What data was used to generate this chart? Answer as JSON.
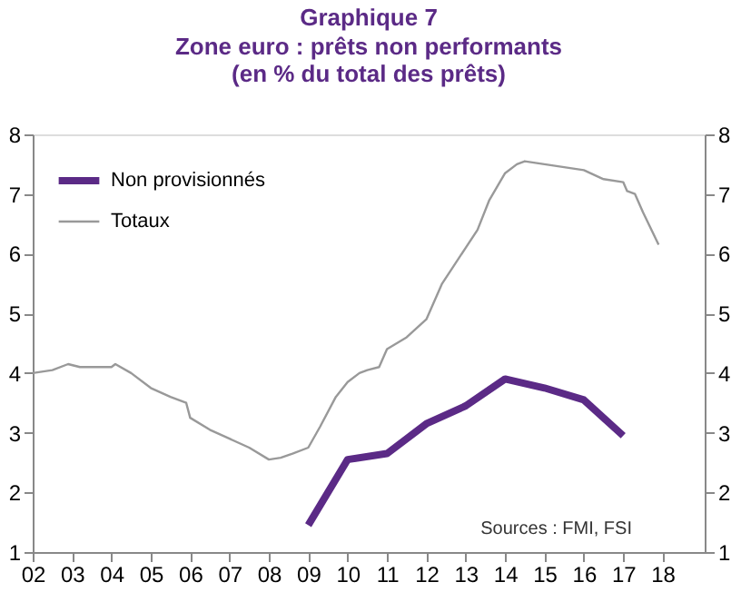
{
  "chart_data": {
    "type": "line",
    "title": "Graphique 7",
    "subtitle": [
      "Zone euro : prêts non performants",
      "(en % du total des prêts)"
    ],
    "series": [
      {
        "name": "Non provisionnés",
        "color": "#5b2a86",
        "x": [
          2009,
          2010,
          2011,
          2012,
          2013,
          2014,
          2015,
          2016,
          2017
        ],
        "values": [
          1.45,
          2.55,
          2.65,
          3.15,
          3.45,
          3.9,
          3.75,
          3.55,
          2.95
        ]
      },
      {
        "name": "Totaux",
        "color": "#999999",
        "x": [
          2002,
          2002.5,
          2002.9,
          2003.2,
          2004,
          2004.1,
          2004.5,
          2005,
          2005.5,
          2005.9,
          2006,
          2006.5,
          2007,
          2007.5,
          2008,
          2008.3,
          2008.6,
          2009,
          2009.3,
          2009.7,
          2010,
          2010.3,
          2010.5,
          2010.8,
          2011,
          2011.5,
          2012,
          2012.4,
          2013,
          2013.3,
          2013.6,
          2014,
          2014.3,
          2014.5,
          2015,
          2015.5,
          2016,
          2016.5,
          2017,
          2017.1,
          2017.3,
          2017.5,
          2017.9
        ],
        "values": [
          4.0,
          4.05,
          4.15,
          4.1,
          4.1,
          4.15,
          4.0,
          3.75,
          3.6,
          3.5,
          3.25,
          3.05,
          2.9,
          2.75,
          2.55,
          2.58,
          2.65,
          2.75,
          3.1,
          3.6,
          3.85,
          4.0,
          4.05,
          4.1,
          4.4,
          4.6,
          4.9,
          5.5,
          6.1,
          6.4,
          6.9,
          7.35,
          7.5,
          7.55,
          7.5,
          7.45,
          7.4,
          7.25,
          7.2,
          7.05,
          7.0,
          6.7,
          6.15
        ]
      }
    ],
    "xlim": [
      2002,
      2019.07
    ],
    "xticks": [
      {
        "value": 2002,
        "label": "02"
      },
      {
        "value": 2003,
        "label": "03"
      },
      {
        "value": 2004,
        "label": "04"
      },
      {
        "value": 2005,
        "label": "05"
      },
      {
        "value": 2006,
        "label": "06"
      },
      {
        "value": 2007,
        "label": "07"
      },
      {
        "value": 2008,
        "label": "08"
      },
      {
        "value": 2009,
        "label": "09"
      },
      {
        "value": 2010,
        "label": "10"
      },
      {
        "value": 2011,
        "label": "11"
      },
      {
        "value": 2012,
        "label": "12"
      },
      {
        "value": 2013,
        "label": "13"
      },
      {
        "value": 2014,
        "label": "14"
      },
      {
        "value": 2015,
        "label": "15"
      },
      {
        "value": 2016,
        "label": "16"
      },
      {
        "value": 2017,
        "label": "17"
      },
      {
        "value": 2018,
        "label": "18"
      }
    ],
    "ylim": [
      1,
      8
    ],
    "yticks": [
      1,
      2,
      3,
      4,
      5,
      6,
      7,
      8
    ],
    "y2lim": [
      1,
      8
    ],
    "y2ticks": [
      1,
      2,
      3,
      4,
      5,
      6,
      7,
      8
    ],
    "grid": false,
    "legend": "top left",
    "marker": "none",
    "line_style": "solid",
    "annotations": [
      "Sources : FMI, FSI"
    ]
  }
}
